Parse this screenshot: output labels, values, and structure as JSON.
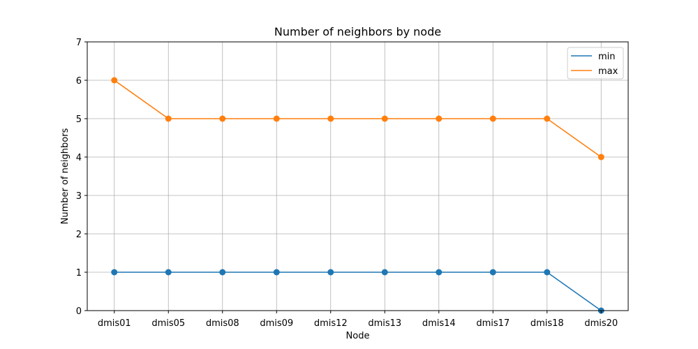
{
  "chart_data": {
    "type": "line",
    "title": "Number of neighbors by node",
    "xlabel": "Node",
    "ylabel": "Number of neighbors",
    "categories": [
      "dmis01",
      "dmis05",
      "dmis08",
      "dmis09",
      "dmis12",
      "dmis13",
      "dmis14",
      "dmis17",
      "dmis18",
      "dmis20"
    ],
    "series": [
      {
        "name": "min",
        "color": "#1f77b4",
        "values": [
          1,
          1,
          1,
          1,
          1,
          1,
          1,
          1,
          1,
          0
        ]
      },
      {
        "name": "max",
        "color": "#ff7f0e",
        "values": [
          6,
          5,
          5,
          5,
          5,
          5,
          5,
          5,
          5,
          4
        ]
      }
    ],
    "ylim": [
      0,
      7
    ],
    "yticks": [
      0,
      1,
      2,
      3,
      4,
      5,
      6,
      7
    ],
    "grid": true,
    "legend_position": "top-right",
    "markers": "circle"
  }
}
